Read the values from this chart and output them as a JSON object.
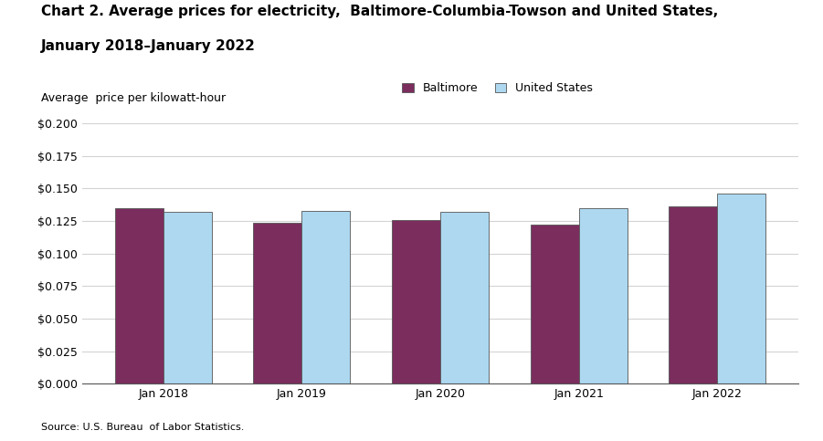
{
  "title_line1": "Chart 2. Average prices for electricity,  Baltimore-Columbia-Towson and United States,",
  "title_line2": "January 2018–January 2022",
  "ylabel": "Average  price per kilowatt-hour",
  "source": "Source: U.S. Bureau  of Labor Statistics.",
  "categories": [
    "Jan 2018",
    "Jan 2019",
    "Jan 2020",
    "Jan 2021",
    "Jan 2022"
  ],
  "baltimore_values": [
    0.135,
    0.124,
    0.126,
    0.122,
    0.136
  ],
  "us_values": [
    0.132,
    0.133,
    0.132,
    0.135,
    0.146
  ],
  "baltimore_color": "#7B2D5E",
  "us_color": "#ADD8F0",
  "bar_edge_color": "#555555",
  "ylim": [
    0.0,
    0.2
  ],
  "ytick_step": 0.025,
  "legend_labels": [
    "Baltimore",
    "United States"
  ],
  "title_fontsize": 11,
  "label_fontsize": 9,
  "tick_fontsize": 9,
  "source_fontsize": 8,
  "bar_width": 0.35
}
